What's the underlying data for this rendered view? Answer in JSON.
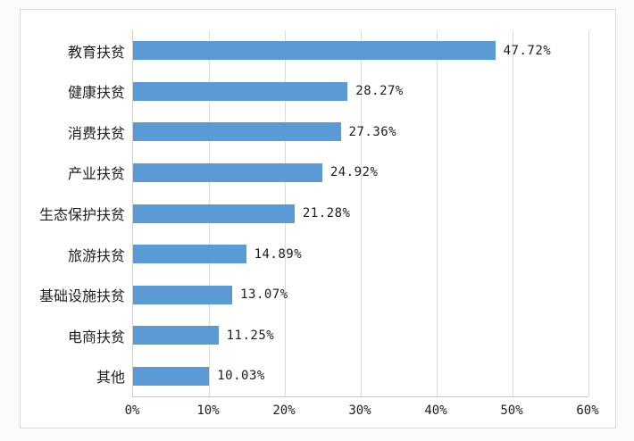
{
  "chart_data": {
    "type": "bar",
    "orientation": "horizontal",
    "title": "",
    "xlabel": "",
    "ylabel": "",
    "categories": [
      "教育扶贫",
      "健康扶贫",
      "消费扶贫",
      "产业扶贫",
      "生态保护扶贫",
      "旅游扶贫",
      "基础设施扶贫",
      "电商扶贫",
      "其他"
    ],
    "values": [
      47.72,
      28.27,
      27.36,
      24.92,
      21.28,
      14.89,
      13.07,
      11.25,
      10.03
    ],
    "value_labels": [
      "47.72%",
      "28.27%",
      "27.36%",
      "24.92%",
      "21.28%",
      "14.89%",
      "13.07%",
      "11.25%",
      "10.03%"
    ],
    "x_ticks": [
      "0%",
      "10%",
      "20%",
      "30%",
      "40%",
      "50%",
      "60%"
    ],
    "xlim": [
      0,
      60
    ],
    "grid": "vertical-gridlines-on",
    "legend": "none"
  },
  "colors": {
    "bar": "#5b9bd5",
    "gridline": "#dadada",
    "axis_line": "#c8c8c8",
    "text": "#1f1f1f",
    "chart_border": "#d9d9d9",
    "chart_background": "#ffffff",
    "page_background": "#fbfbfb"
  }
}
